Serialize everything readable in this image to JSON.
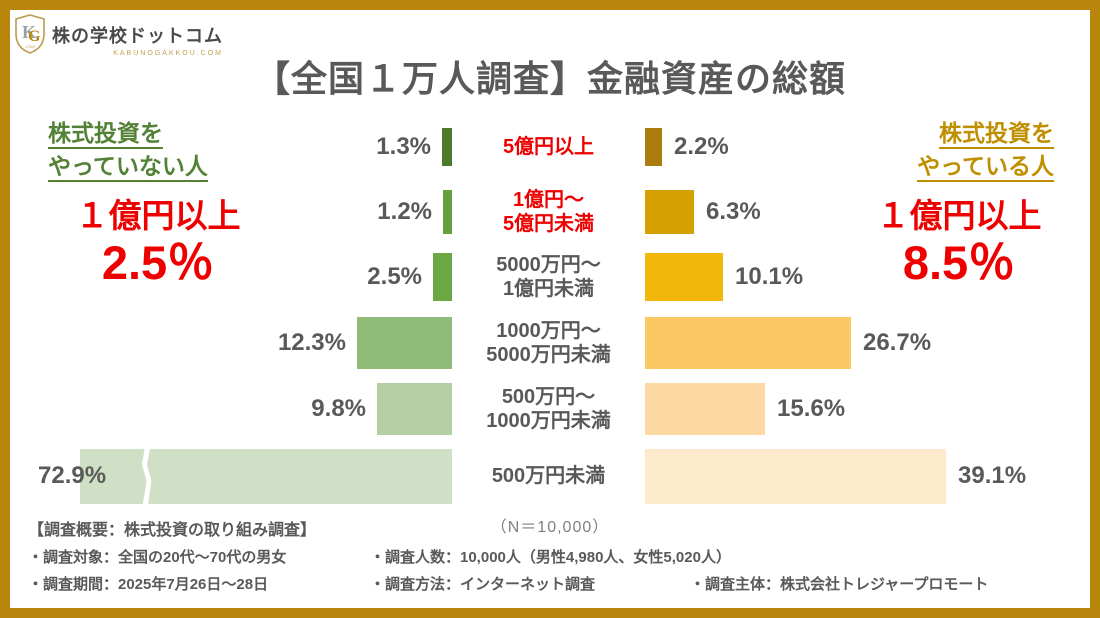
{
  "brand": {
    "logo_icon": "kg-shield-icon",
    "logo_text": "株の学校ドットコム",
    "logo_sub": "KABUNOGAKKOU.COM"
  },
  "title": "【全国１万人調査】金融資産の総額",
  "left_panel": {
    "header_line1": "株式投資を",
    "header_line2": "やっていない人",
    "stat_label": "１億円以上",
    "stat_value": "2.5％"
  },
  "right_panel": {
    "header_line1": "株式投資を",
    "header_line2": "やっている人",
    "stat_label": "１億円以上",
    "stat_value": "8.5％"
  },
  "chart_data": {
    "type": "bar",
    "variant": "butterfly",
    "categories": [
      [
        "5億円以上"
      ],
      [
        "1億円〜",
        "5億円未満"
      ],
      [
        "5000万円〜",
        "1億円未満"
      ],
      [
        "1000万円〜",
        "5000万円未満"
      ],
      [
        "500万円〜",
        "1000万円未満"
      ],
      [
        "500万円未満"
      ]
    ],
    "category_label_colors": [
      "#ee0000",
      "#ee0000",
      "#595959",
      "#595959",
      "#595959",
      "#595959"
    ],
    "series": [
      {
        "name": "株式投資をやっていない人",
        "side": "left",
        "values": [
          1.3,
          1.2,
          2.5,
          12.3,
          9.8,
          72.9
        ],
        "labels": [
          "1.3%",
          "1.2%",
          "2.5%",
          "12.3%",
          "9.8%",
          "72.9%"
        ],
        "colors": [
          "#4e7a2c",
          "#66a03d",
          "#6ba844",
          "#8fbc79",
          "#b4cfa4",
          "#d0e0c6"
        ],
        "truncated_index": 5
      },
      {
        "name": "株式投資をやっている人",
        "side": "right",
        "values": [
          2.2,
          6.3,
          10.1,
          26.7,
          15.6,
          39.1
        ],
        "labels": [
          "2.2%",
          "6.3%",
          "10.1%",
          "26.7%",
          "15.6%",
          "39.1%"
        ],
        "colors": [
          "#ab7d0e",
          "#d5a000",
          "#f2b70a",
          "#fbc863",
          "#fcd9a2",
          "#fde9cb"
        ],
        "truncated_index": -1
      }
    ],
    "sample_note": "（N＝10,000）",
    "xlim_percent": [
      0,
      40
    ],
    "grid": false,
    "legend_position": "outer-headers"
  },
  "footer": {
    "heading": "【調査概要：株式投資の取り組み調査】",
    "line1": [
      "・調査対象：全国の20代〜70代の男女",
      "・調査人数：10,000人（男性4,980人、女性5,020人）"
    ],
    "line2": [
      "・調査期間：2025年7月26日〜28日",
      "・調査方法：インターネット調査",
      "・調査主体：株式会社トレジャープロモート"
    ]
  },
  "colors": {
    "frame_gold": "#b8860b",
    "title_gray": "#595959",
    "green_header": "#538135",
    "gold_header": "#bf8f00",
    "stat_red": "#ee0000",
    "note_gray": "#808080"
  }
}
